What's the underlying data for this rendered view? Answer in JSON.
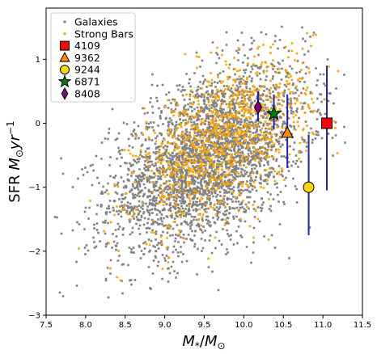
{
  "chart_data": {
    "type": "scatter",
    "xlabel": "M_*/M_⊙",
    "ylabel": "SFR M_⊙yr⁻¹",
    "xlim": [
      7.5,
      11.5
    ],
    "ylim": [
      -3,
      1.8
    ],
    "xticks": [
      "7.5",
      "8.0",
      "8.5",
      "9.0",
      "9.5",
      "10.0",
      "10.5",
      "11.0",
      "11.5"
    ],
    "xtick_values": [
      7.5,
      8.0,
      8.5,
      9.0,
      9.5,
      10.0,
      10.5,
      11.0,
      11.5
    ],
    "yticks": [
      "−3",
      "−2",
      "−1",
      "0",
      "1"
    ],
    "ytick_values": [
      -3,
      -2,
      -1,
      0,
      1
    ],
    "grid": false,
    "legend_position": "top-left",
    "background_clouds": [
      {
        "name": "Galaxies",
        "color": "#808080",
        "marker": "square",
        "center_x": 9.55,
        "center_y": -0.55,
        "spread_x": 0.62,
        "spread_y": 0.62,
        "slope": 0.55,
        "x_range": [
          7.6,
          11.3
        ],
        "y_range": [
          -2.95,
          1.7
        ],
        "count": 3200
      },
      {
        "name": "Strong Bars",
        "color": "#FFA500",
        "marker": "square",
        "center_x": 9.75,
        "center_y": -0.25,
        "spread_x": 0.55,
        "spread_y": 0.55,
        "slope": 0.65,
        "x_range": [
          7.9,
          11.3
        ],
        "y_range": [
          -2.5,
          1.5
        ],
        "count": 1000
      }
    ],
    "highlighted": [
      {
        "name": "4109",
        "x": 11.05,
        "y": 0.0,
        "y_err_low": 1.05,
        "y_err_high": 0.9,
        "marker": "square",
        "color": "#FF0000"
      },
      {
        "name": "9362",
        "x": 10.55,
        "y": -0.15,
        "y_err_low": 0.55,
        "y_err_high": 0.6,
        "marker": "triangle",
        "color": "#FF8C00"
      },
      {
        "name": "9244",
        "x": 10.82,
        "y": -1.0,
        "y_err_low": 0.75,
        "y_err_high": 0.82,
        "marker": "circle",
        "color": "#FFD700"
      },
      {
        "name": "6871",
        "x": 10.38,
        "y": 0.15,
        "y_err_low": 0.25,
        "y_err_high": 0.3,
        "marker": "star",
        "color": "#008000"
      },
      {
        "name": "8408",
        "x": 10.18,
        "y": 0.25,
        "y_err_low": 0.22,
        "y_err_high": 0.25,
        "marker": "diamond",
        "color": "#800080"
      }
    ],
    "errorbar_color": "#2020C0"
  }
}
